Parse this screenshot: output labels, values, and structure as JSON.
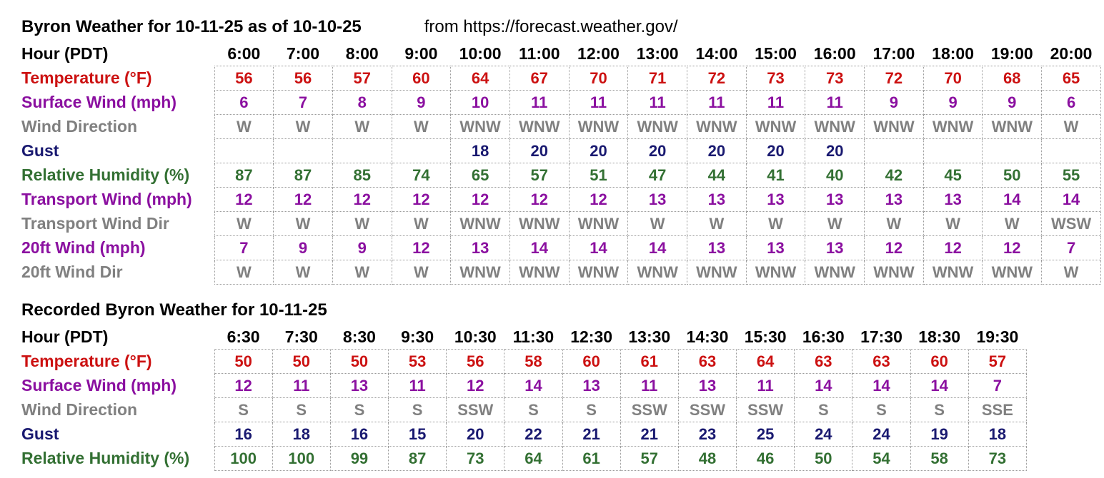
{
  "source": "from https://forecast.weather.gov/",
  "colors": {
    "temperature": "#cc1111",
    "wind": "#8b10a0",
    "direction": "#808080",
    "gust": "#191970",
    "humidity": "#337033",
    "header": "#000000",
    "grid": "#9b9b9b"
  },
  "chart_data": [
    {
      "type": "table",
      "name": "forecast",
      "title": "Byron Weather for 10-11-25 as of 10-10-25",
      "hour_label": "Hour (PDT)",
      "hours": [
        "6:00",
        "7:00",
        "8:00",
        "9:00",
        "10:00",
        "11:00",
        "12:00",
        "13:00",
        "14:00",
        "15:00",
        "16:00",
        "17:00",
        "18:00",
        "19:00",
        "20:00"
      ],
      "rows": [
        {
          "label": "Temperature (°F)",
          "color": "temperature",
          "values": [
            "56",
            "56",
            "57",
            "60",
            "64",
            "67",
            "70",
            "71",
            "72",
            "73",
            "73",
            "72",
            "70",
            "68",
            "65"
          ]
        },
        {
          "label": "Surface Wind (mph)",
          "color": "wind",
          "values": [
            "6",
            "7",
            "8",
            "9",
            "10",
            "11",
            "11",
            "11",
            "11",
            "11",
            "11",
            "9",
            "9",
            "9",
            "6"
          ]
        },
        {
          "label": "Wind Direction",
          "color": "direction",
          "values": [
            "W",
            "W",
            "W",
            "W",
            "WNW",
            "WNW",
            "WNW",
            "WNW",
            "WNW",
            "WNW",
            "WNW",
            "WNW",
            "WNW",
            "WNW",
            "W"
          ]
        },
        {
          "label": "Gust",
          "color": "gust",
          "values": [
            "",
            "",
            "",
            "",
            "18",
            "20",
            "20",
            "20",
            "20",
            "20",
            "20",
            "",
            "",
            "",
            ""
          ]
        },
        {
          "label": "Relative Humidity (%)",
          "color": "humidity",
          "values": [
            "87",
            "87",
            "85",
            "74",
            "65",
            "57",
            "51",
            "47",
            "44",
            "41",
            "40",
            "42",
            "45",
            "50",
            "55"
          ]
        },
        {
          "label": "Transport Wind (mph)",
          "color": "wind",
          "values": [
            "12",
            "12",
            "12",
            "12",
            "12",
            "12",
            "12",
            "13",
            "13",
            "13",
            "13",
            "13",
            "13",
            "14",
            "14"
          ]
        },
        {
          "label": "Transport Wind Dir",
          "color": "direction",
          "values": [
            "W",
            "W",
            "W",
            "W",
            "WNW",
            "WNW",
            "WNW",
            "W",
            "W",
            "W",
            "W",
            "W",
            "W",
            "W",
            "WSW"
          ]
        },
        {
          "label": "20ft Wind (mph)",
          "color": "wind",
          "values": [
            "7",
            "9",
            "9",
            "12",
            "13",
            "14",
            "14",
            "14",
            "13",
            "13",
            "13",
            "12",
            "12",
            "12",
            "7"
          ]
        },
        {
          "label": "20ft Wind Dir",
          "color": "direction",
          "values": [
            "W",
            "W",
            "W",
            "W",
            "WNW",
            "WNW",
            "WNW",
            "WNW",
            "WNW",
            "WNW",
            "WNW",
            "WNW",
            "WNW",
            "WNW",
            "W"
          ]
        }
      ]
    },
    {
      "type": "table",
      "name": "recorded",
      "title": "Recorded Byron Weather for 10-11-25",
      "hour_label": "Hour (PDT)",
      "hours": [
        "6:30",
        "7:30",
        "8:30",
        "9:30",
        "10:30",
        "11:30",
        "12:30",
        "13:30",
        "14:30",
        "15:30",
        "16:30",
        "17:30",
        "18:30",
        "19:30"
      ],
      "rows": [
        {
          "label": "Temperature (°F)",
          "color": "temperature",
          "values": [
            "50",
            "50",
            "50",
            "53",
            "56",
            "58",
            "60",
            "61",
            "63",
            "64",
            "63",
            "63",
            "60",
            "57"
          ]
        },
        {
          "label": "Surface Wind (mph)",
          "color": "wind",
          "values": [
            "12",
            "11",
            "13",
            "11",
            "12",
            "14",
            "13",
            "11",
            "13",
            "11",
            "14",
            "14",
            "14",
            "7"
          ]
        },
        {
          "label": "Wind Direction",
          "color": "direction",
          "values": [
            "S",
            "S",
            "S",
            "S",
            "SSW",
            "S",
            "S",
            "SSW",
            "SSW",
            "SSW",
            "S",
            "S",
            "S",
            "SSE"
          ]
        },
        {
          "label": "Gust",
          "color": "gust",
          "values": [
            "16",
            "18",
            "16",
            "15",
            "20",
            "22",
            "21",
            "21",
            "23",
            "25",
            "24",
            "24",
            "19",
            "18"
          ]
        },
        {
          "label": "Relative Humidity (%)",
          "color": "humidity",
          "values": [
            "100",
            "100",
            "99",
            "87",
            "73",
            "64",
            "61",
            "57",
            "48",
            "46",
            "50",
            "54",
            "58",
            "73"
          ]
        }
      ]
    }
  ]
}
